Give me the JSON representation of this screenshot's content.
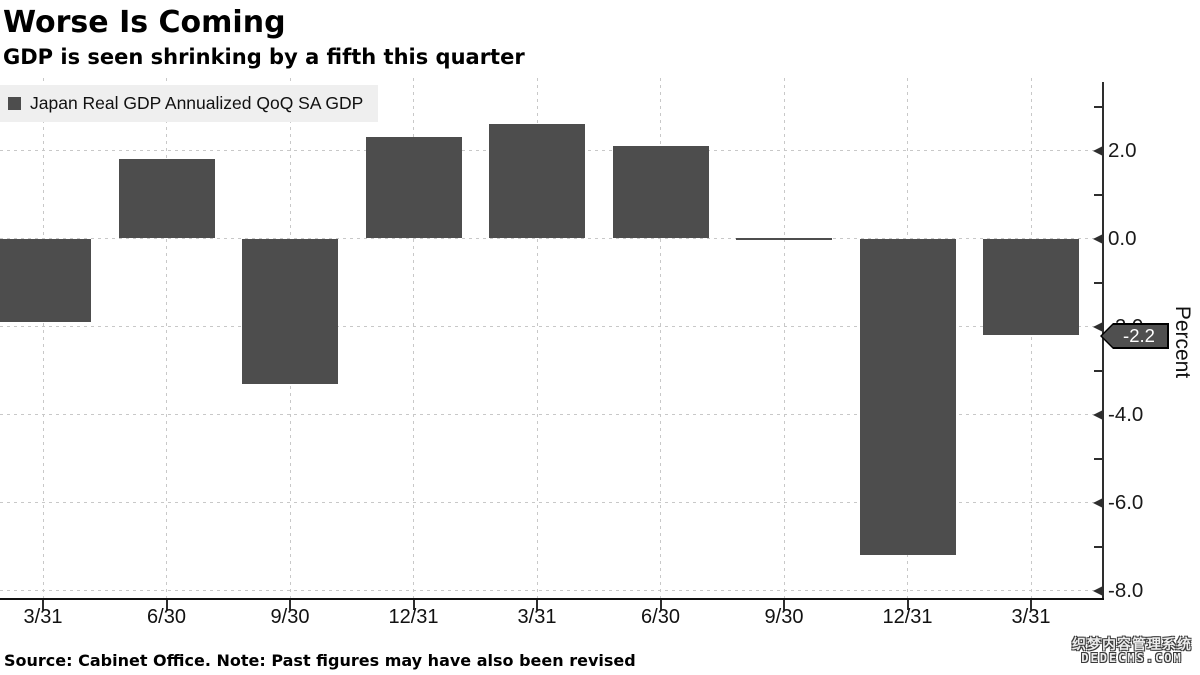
{
  "header": {
    "title": "Worse Is Coming",
    "subtitle": "GDP is seen shrinking by a fifth this quarter"
  },
  "legend": {
    "label": "Japan Real GDP Annualized QoQ SA GDP",
    "swatch_color": "#4d4d4d"
  },
  "chart_data": {
    "type": "bar",
    "title": "Worse Is Coming",
    "subtitle": "GDP is seen shrinking by a fifth this quarter",
    "series_name": "Japan Real GDP Annualized QoQ SA GDP",
    "categories": [
      "3/31",
      "6/30",
      "9/30",
      "12/31",
      "3/31",
      "6/30",
      "9/30",
      "12/31",
      "3/31"
    ],
    "values": [
      -1.9,
      1.8,
      -3.3,
      2.3,
      2.6,
      2.1,
      0.0,
      -7.2,
      -2.2
    ],
    "xlabel": "",
    "ylabel": "Percent",
    "ylim": [
      -8.2,
      3.6
    ],
    "y_ticks": [
      2.0,
      0.0,
      -2.0,
      -4.0,
      -6.0,
      -8.0
    ],
    "y_tick_labels": [
      "2.0",
      "0.0",
      "-2.0",
      "-4.0",
      "-6.0",
      "-8.0"
    ],
    "y_minor_ticks": [
      3.0,
      1.0,
      -1.0,
      -3.0,
      -5.0,
      -7.0
    ],
    "grid": true,
    "legend_position": "top-left",
    "bar_color": "#4d4d4d",
    "last_value_label": "-2.2"
  },
  "footer": {
    "source": "Source: Cabinet Office. Note: Past figures may have also been revised"
  },
  "watermark": {
    "line1": "织梦内容管理系统",
    "line2": "DEDECMS.COM"
  }
}
